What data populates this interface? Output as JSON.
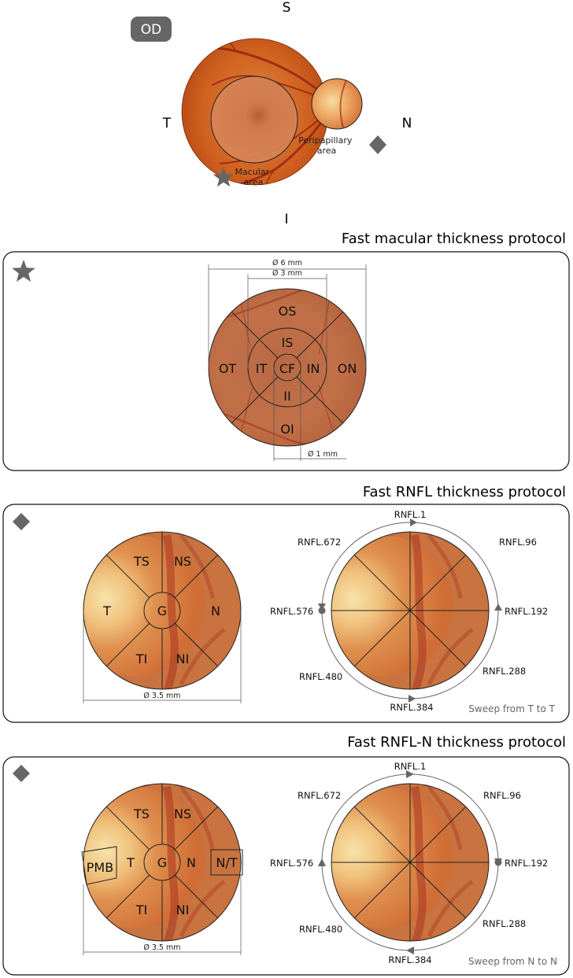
{
  "fundus": {
    "eye_label": "OD",
    "superior": "S",
    "inferior": "I",
    "temporal": "T",
    "nasal": "N",
    "macular_area": [
      "Macular",
      "area"
    ],
    "peripapillary_area": [
      "Peripapillary",
      "area"
    ]
  },
  "macular": {
    "title": "Fast macular thickness protocol",
    "dim_6mm": "Ø 6 mm",
    "dim_3mm": "Ø 3 mm",
    "dim_1mm": "Ø 1 mm",
    "sectors": {
      "OS": "OS",
      "IS": "IS",
      "OT": "OT",
      "IT": "IT",
      "CF": "CF",
      "IN": "IN",
      "ON": "ON",
      "II": "II",
      "OI": "OI"
    }
  },
  "rnfl": {
    "title": "Fast RNFL thickness protocol",
    "dim": "Ø 3.5 mm",
    "sectors": {
      "TS": "TS",
      "NS": "NS",
      "T": "T",
      "G": "G",
      "N": "N",
      "TI": "TI",
      "NI": "NI"
    },
    "points": {
      "p1": "RNFL.1",
      "p96": "RNFL.96",
      "p192": "RNFL.192",
      "p288": "RNFL.288",
      "p384": "RNFL.384",
      "p480": "RNFL.480",
      "p576": "RNFL.576",
      "p672": "RNFL.672"
    },
    "sweep": "Sweep from T to T"
  },
  "rnfln": {
    "title": "Fast RNFL-N thickness protocol",
    "dim": "Ø 3.5 mm",
    "sectors": {
      "TS": "TS",
      "NS": "NS",
      "T": "T",
      "G": "G",
      "N": "N",
      "TI": "TI",
      "NI": "NI",
      "PMB": "PMB",
      "NT": "N/T"
    },
    "points": {
      "p1": "RNFL.1",
      "p96": "RNFL.96",
      "p192": "RNFL.192",
      "p288": "RNFL.288",
      "p384": "RNFL.384",
      "p480": "RNFL.480",
      "p576": "RNFL.576",
      "p672": "RNFL.672"
    },
    "sweep": "Sweep from N to N"
  },
  "colors": {
    "fundus_dark": "#a03e0e",
    "fundus_mid": "#cc5a1e",
    "fundus_light": "#e0803a",
    "macula_fill": "#cf7d4e",
    "disc_light": "#f4d79a",
    "icon_gray": "#666666",
    "vessel": "#8e1d12"
  }
}
